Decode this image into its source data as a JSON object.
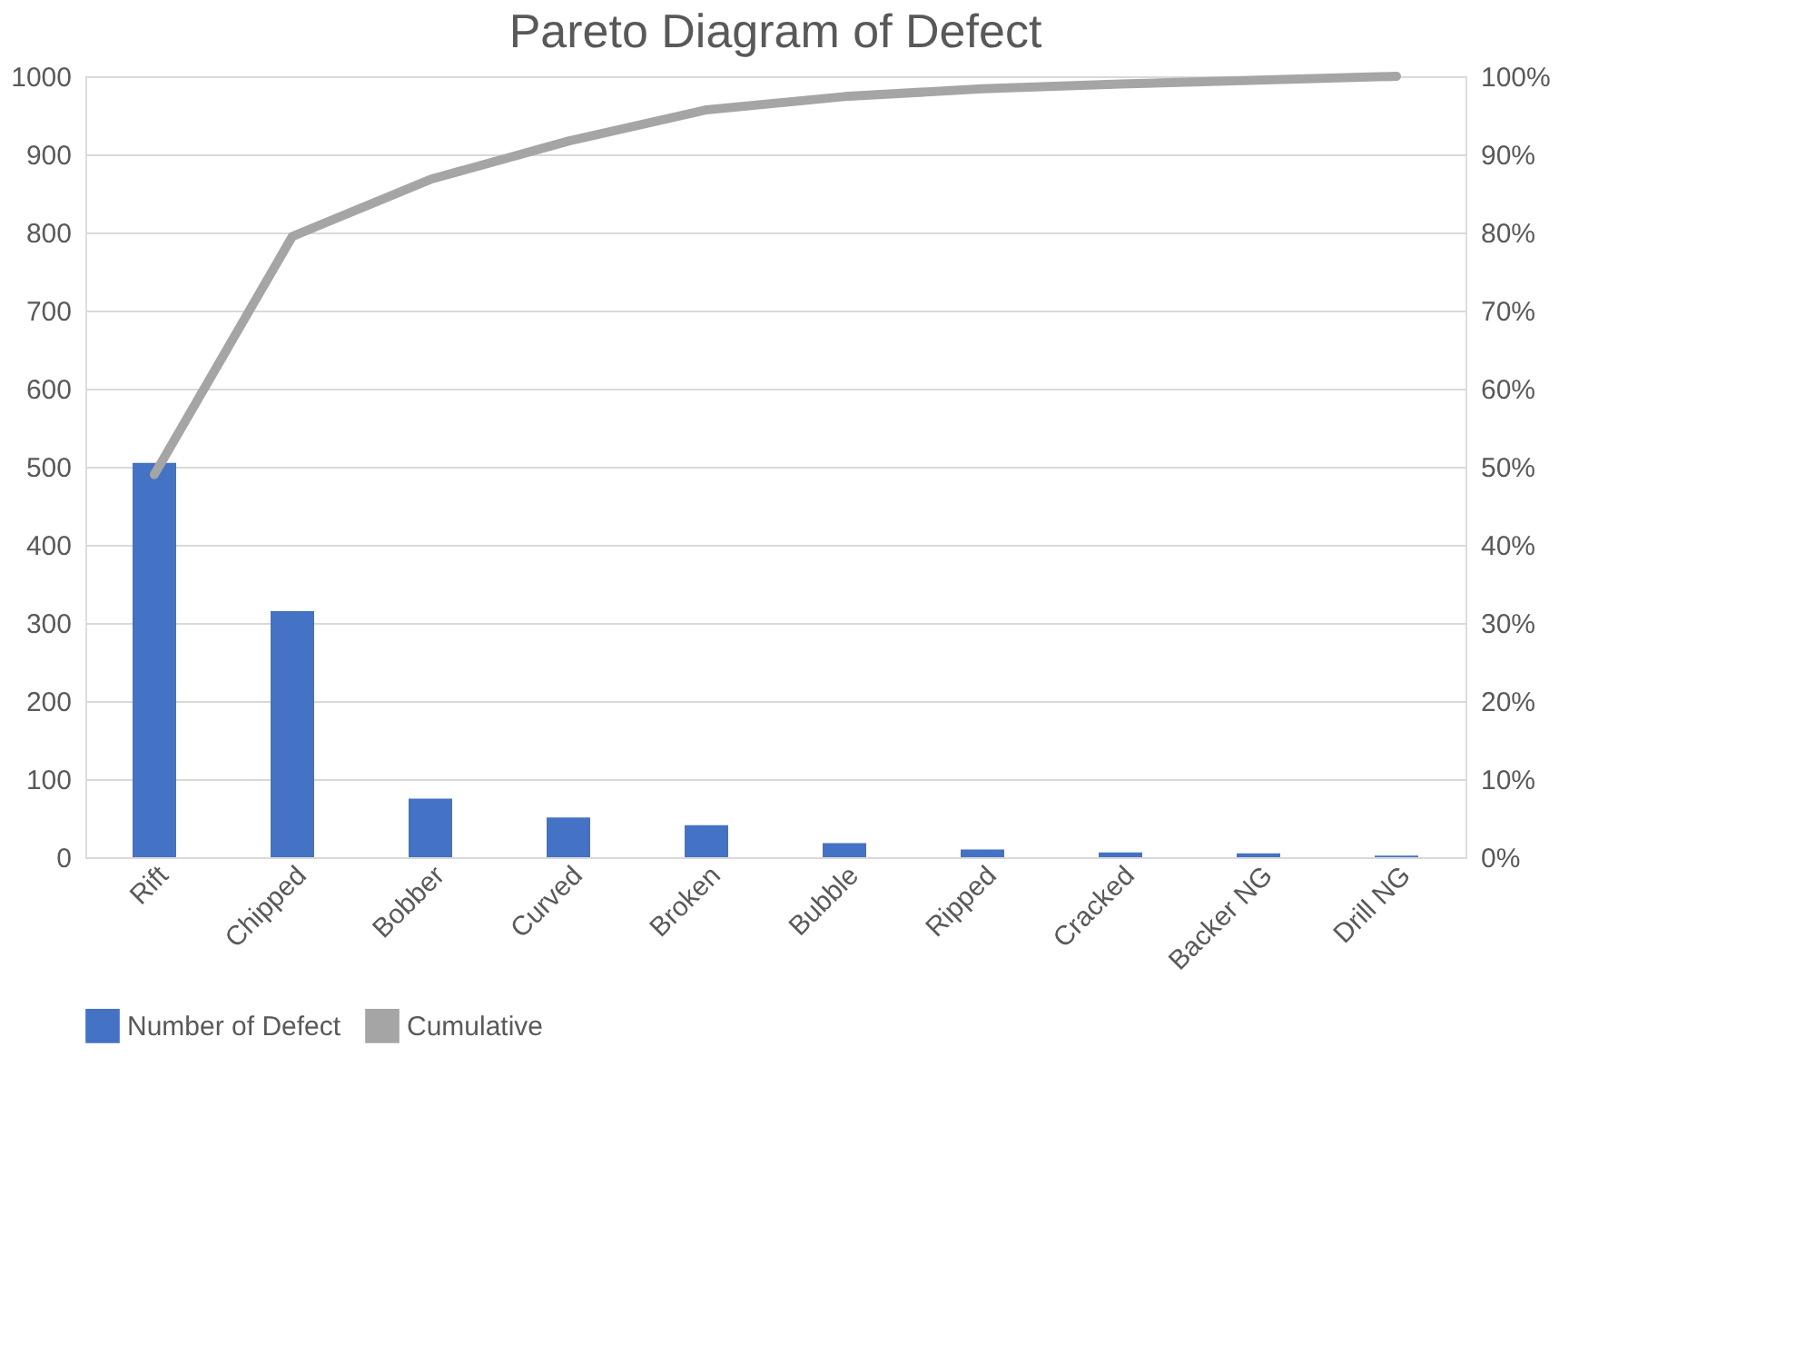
{
  "chart_data": {
    "type": "bar",
    "title": "Pareto Diagram of Defect",
    "categories": [
      "Rift",
      "Chipped",
      "Bobber",
      "Curved",
      "Broken",
      "Bubble",
      "Ripped",
      "Cracked",
      "Backer NG",
      "Drill NG"
    ],
    "series": [
      {
        "name": "Number of Defect",
        "color": "#4472c4",
        "values": [
          505,
          315,
          75,
          51,
          41,
          18,
          10,
          6,
          5,
          2
        ]
      },
      {
        "name": "Cumulative",
        "type": "line",
        "axis": "y2",
        "color": "#a5a5a5",
        "values": [
          49,
          79.5,
          86.8,
          91.7,
          95.7,
          97.4,
          98.4,
          99.0,
          99.5,
          100
        ]
      }
    ],
    "ylim": [
      0,
      1000
    ],
    "yticks": [
      0,
      100,
      200,
      300,
      400,
      500,
      600,
      700,
      800,
      900,
      1000
    ],
    "y2lim": [
      0,
      100
    ],
    "y2ticks": [
      {
        "value": 0,
        "label": "0%"
      },
      {
        "value": 10,
        "label": "10%"
      },
      {
        "value": 20,
        "label": "20%"
      },
      {
        "value": 30,
        "label": "30%"
      },
      {
        "value": 40,
        "label": "40%"
      },
      {
        "value": 50,
        "label": "50%"
      },
      {
        "value": 60,
        "label": "60%"
      },
      {
        "value": 70,
        "label": "70%"
      },
      {
        "value": 80,
        "label": "80%"
      },
      {
        "value": 90,
        "label": "90%"
      },
      {
        "value": 100,
        "label": "100%"
      }
    ],
    "grid": "y",
    "legend": "bottom",
    "marker": "none",
    "line_style": "solid"
  }
}
